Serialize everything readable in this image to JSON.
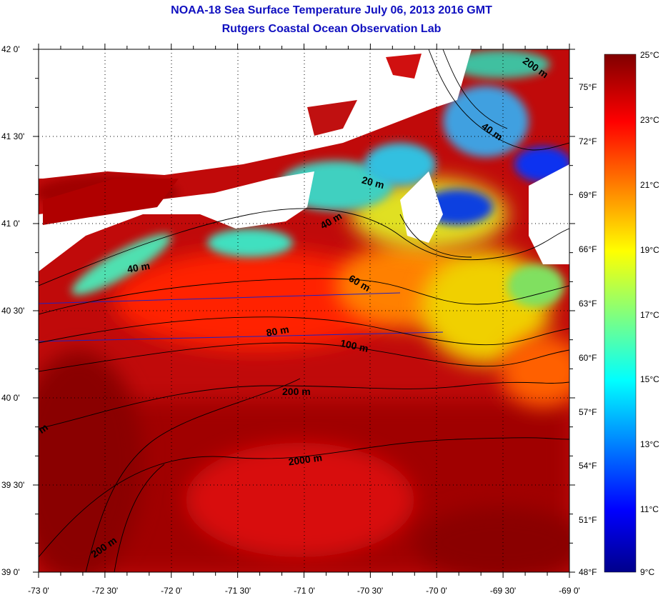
{
  "title_line1": "NOAA-18 Sea Surface Temperature July 06, 2013 2016 GMT",
  "title_line2": "Rutgers Coastal Ocean Observation Lab",
  "lat_labels": [
    "42 0'",
    "41 30'",
    "41 0'",
    "40 30'",
    "40 0'",
    "39 30'",
    "39 0'"
  ],
  "lon_labels": [
    "-73 0'",
    "-72 30'",
    "-72 0'",
    "-71 30'",
    "-71 0'",
    "-70 30'",
    "-70 0'",
    "-69 30'",
    "-69 0'"
  ],
  "colorbar": {
    "fahrenheit_labels": [
      "75°F",
      "72°F",
      "69°F",
      "66°F",
      "63°F",
      "60°F",
      "57°F",
      "54°F",
      "51°F",
      "48°F"
    ],
    "celsius_labels": [
      "25°C",
      "23°C",
      "21°C",
      "19°C",
      "17°C",
      "15°C",
      "13°C",
      "11°C",
      "9°C"
    ],
    "range_c": [
      9,
      25
    ]
  },
  "contour_labels": [
    "200 m",
    "40 m",
    "20 m",
    "40 m",
    "40 m",
    "60 m",
    "80 m",
    "100 m",
    "200 m",
    "2000 m",
    "200 m",
    "m"
  ],
  "colors": {
    "title": "#1010c0",
    "warm": "#8b0000",
    "hot": "#ff0000",
    "mid": "#ffff00",
    "cool": "#00ffff",
    "cold": "#0000ff",
    "coldest": "#00008b"
  }
}
